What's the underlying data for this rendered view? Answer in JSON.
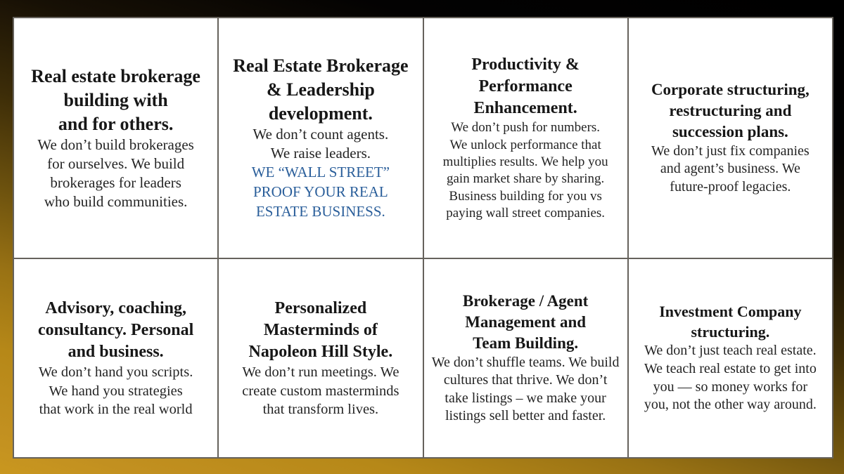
{
  "page": {
    "frame_top_color": "#000000",
    "frame_bottom_color": "#c29020",
    "panel_background": "#ffffff",
    "grid_line_color": "#66625c",
    "heading_color": "#171717",
    "body_color": "#242424",
    "highlight_color": "#2a5e9a"
  },
  "cards": [
    {
      "heading": "Real estate brokerage building with and for others.",
      "body": "We don’t build brokerages for ourselves. We build brokerages for leaders who build communities."
    },
    {
      "heading": "Real Estate Brokerage & Leadership development.",
      "body": "We don’t count agents. We raise leaders.",
      "highlight": "WE “WALL STREET” PROOF YOUR REAL ESTATE BUSINESS."
    },
    {
      "heading": "Productivity & Performance Enhancement.",
      "body": "We don’t push for numbers. We unlock performance that multiplies results. We help you gain market share by sharing. Business building for you vs paying wall street companies."
    },
    {
      "heading": "Corporate structuring, restructuring and succession plans.",
      "body": "We don’t just fix companies and agent’s business. We future-proof legacies."
    },
    {
      "heading": "Advisory, coaching, consultancy. Personal and business.",
      "body": "We don’t hand you scripts. We hand you strategies that work in the real world"
    },
    {
      "heading": "Personalized Masterminds of Napoleon Hill Style.",
      "body": "We don’t run meetings. We create custom masterminds that transform lives."
    },
    {
      "heading": "Brokerage / Agent Management and Team Building.",
      "body": "We don’t shuffle teams. We build cultures that thrive. We don’t take listings – we make your listings sell better and faster."
    },
    {
      "heading": "Investment Company structuring.",
      "body": "We don’t just teach real estate. We teach real estate to get into you — so money works for you, not the other way around."
    }
  ]
}
